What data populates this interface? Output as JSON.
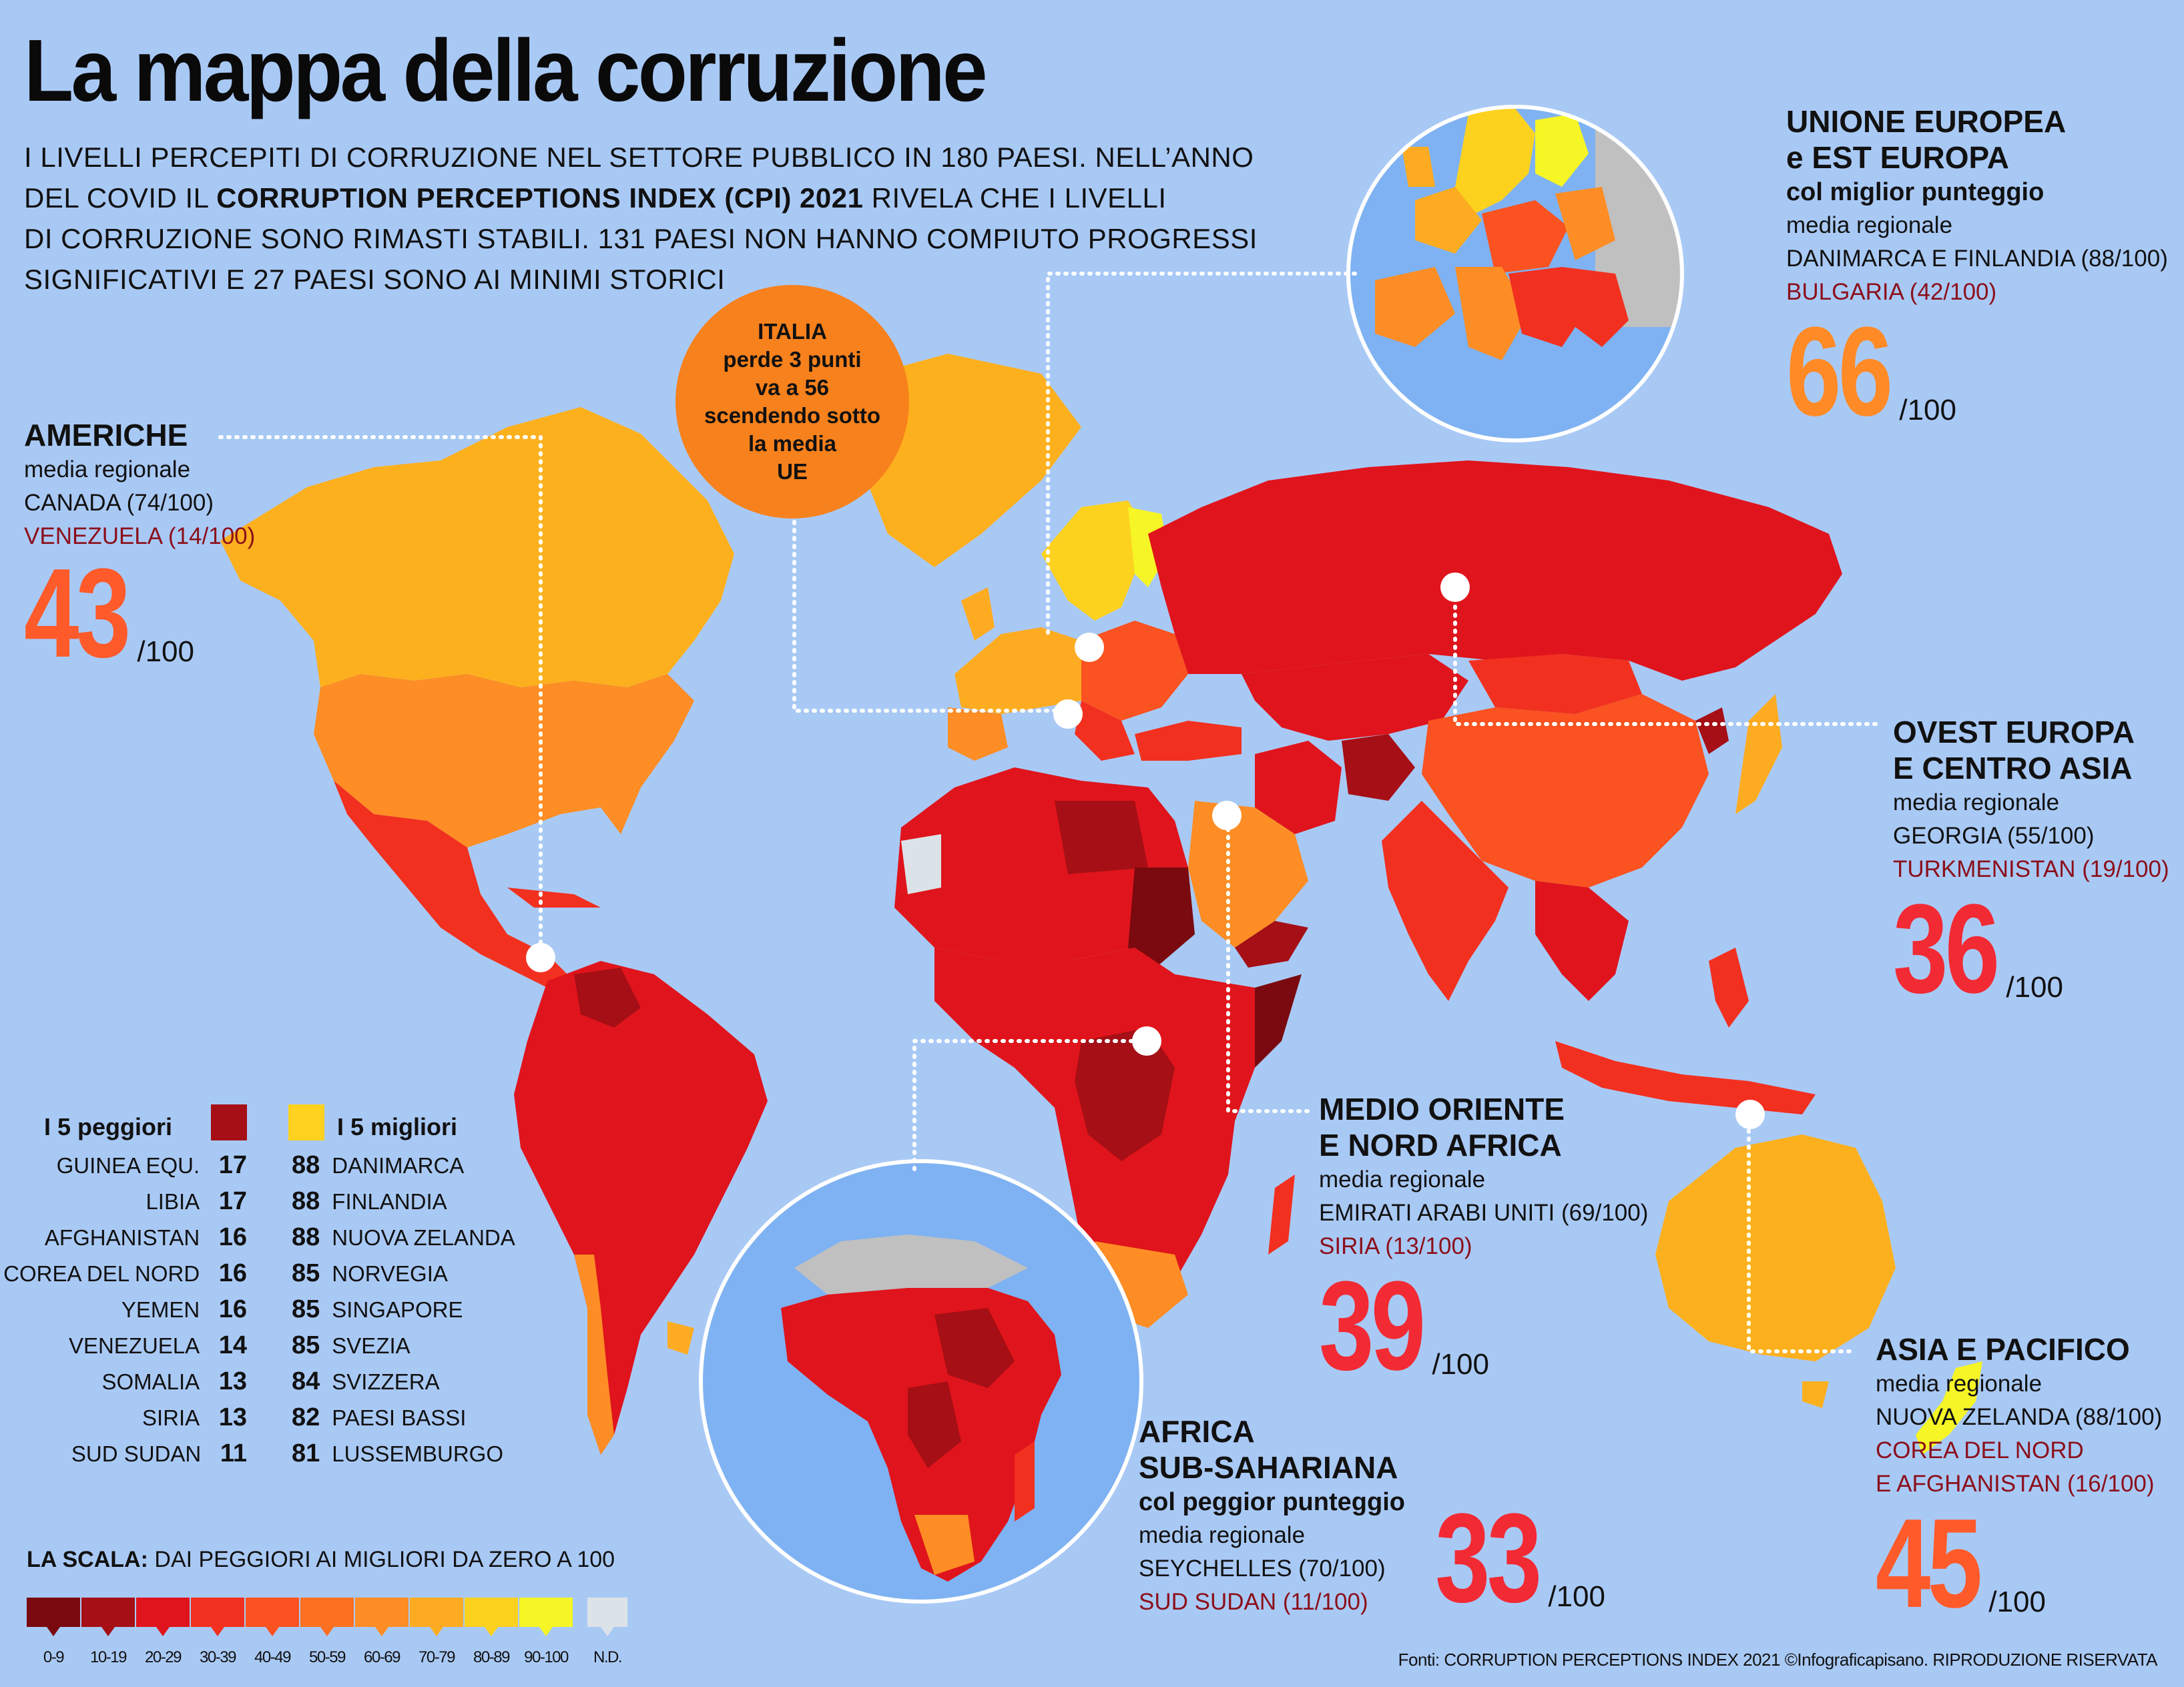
{
  "title": "La mappa della corruzione",
  "intro": {
    "line1": "I livelli percepiti di corruzione nel settore pubblico in 180 paesi. Nell’anno",
    "line2_pre": "del Covid il ",
    "line2_bold": "Corruption Perceptions Index (CPI) 2021",
    "line2_post": " rivela che i livelli",
    "line3": "di corruzione sono rimasti stabili. 131 paesi non hanno compiuto progressi",
    "line4": "significativi e 27 paesi sono ai minimi storici"
  },
  "italia": {
    "l1": "ITALIA",
    "l2": "perde 3 punti",
    "l3": "va a 56",
    "l4": "scendendo sotto",
    "l5": "la media",
    "l6": "UE"
  },
  "regions": {
    "americhe": {
      "name": "AMERICHE",
      "avg_label": "media regionale",
      "best": "CANADA (74/100)",
      "worst": "VENEZUELA (14/100)",
      "score": "43",
      "unit": "/100",
      "score_color": "#ff5a2a"
    },
    "ue": {
      "name1": "UNIONE EUROPEA",
      "name2": "e EST EUROPA",
      "sub": "col miglior punteggio",
      "avg_label": "media regionale",
      "best": "DANIMARCA E FINLANDIA (88/100)",
      "worst": "BULGARIA (42/100)",
      "score": "66",
      "unit": "/100",
      "score_color": "#ff8a26"
    },
    "ovest": {
      "name1": "OVEST EUROPA",
      "name2": "E CENTRO ASIA",
      "avg_label": "media regionale",
      "best": "GEORGIA (55/100)",
      "worst": "TURKMENISTAN (19/100)",
      "score": "36",
      "unit": "/100",
      "score_color": "#f22a33"
    },
    "medio": {
      "name1": "MEDIO ORIENTE",
      "name2": "E NORD AFRICA",
      "avg_label": "media regionale",
      "best": "EMIRATI ARABI UNITI (69/100)",
      "worst": "SIRIA (13/100)",
      "score": "39",
      "unit": "/100",
      "score_color": "#f22a33"
    },
    "africa": {
      "name1": "AFRICA",
      "name2": "SUB-SAHARIANA",
      "sub": "col peggior punteggio",
      "avg_label": "media regionale",
      "best": "SEYCHELLES (70/100)",
      "worst": "SUD SUDAN (11/100)",
      "score": "33",
      "unit": "/100",
      "score_color": "#f22a33"
    },
    "asia": {
      "name": "ASIA E PACIFICO",
      "avg_label": "media regionale",
      "best": "NUOVA ZELANDA (88/100)",
      "worst1": "COREA DEL NORD",
      "worst2": "E AFGHANISTAN (16/100)",
      "score": "45",
      "unit": "/100",
      "score_color": "#ff5a2a"
    }
  },
  "legend": {
    "worst_title": "I 5 peggiori",
    "best_title": "I 5 migliori",
    "worst_color": "#a50f15",
    "best_color": "#ffd21f",
    "worst": [
      {
        "name": "GUINEA EQU.",
        "score": "17"
      },
      {
        "name": "LIBIA",
        "score": "17"
      },
      {
        "name": "AFGHANISTAN",
        "score": "16"
      },
      {
        "name": "COREA DEL NORD",
        "score": "16"
      },
      {
        "name": "YEMEN",
        "score": "16"
      },
      {
        "name": "VENEZUELA",
        "score": "14"
      },
      {
        "name": "SOMALIA",
        "score": "13"
      },
      {
        "name": "SIRIA",
        "score": "13"
      },
      {
        "name": "SUD SUDAN",
        "score": "11"
      }
    ],
    "best": [
      {
        "name": "DANIMARCA",
        "score": "88"
      },
      {
        "name": "FINLANDIA",
        "score": "88"
      },
      {
        "name": "NUOVA ZELANDA",
        "score": "88"
      },
      {
        "name": "NORVEGIA",
        "score": "85"
      },
      {
        "name": "SINGAPORE",
        "score": "85"
      },
      {
        "name": "SVEZIA",
        "score": "85"
      },
      {
        "name": "SVIZZERA",
        "score": "84"
      },
      {
        "name": "PAESI BASSI",
        "score": "82"
      },
      {
        "name": "LUSSEMBURGO",
        "score": "81"
      }
    ]
  },
  "scale": {
    "title_bold": "LA SCALA:",
    "title_rest": " DAI PEGGIORI AI MIGLIORI DA ZERO A 100",
    "bins": [
      {
        "label": "0-9",
        "color": "#7a0a0f"
      },
      {
        "label": "10-19",
        "color": "#a50f15"
      },
      {
        "label": "20-29",
        "color": "#e0141c"
      },
      {
        "label": "30-39",
        "color": "#f2301f"
      },
      {
        "label": "40-49",
        "color": "#fa5220"
      },
      {
        "label": "50-59",
        "color": "#fc7022"
      },
      {
        "label": "60-69",
        "color": "#fd8d24"
      },
      {
        "label": "70-79",
        "color": "#fdac22"
      },
      {
        "label": "80-89",
        "color": "#fdd21f"
      },
      {
        "label": "90-100",
        "color": "#f6f526"
      },
      {
        "label": "N.D.",
        "color": "#dce3e8"
      }
    ]
  },
  "source": "Fonti: CORRUPTION PERCEPTIONS INDEX 2021 ©Infograficapisano. RIPRODUZIONE RISERVATA",
  "colors": {
    "ocean": "#a9c9f5",
    "inset_sea": "#7fb2f2",
    "na": "#c0c0c0"
  }
}
